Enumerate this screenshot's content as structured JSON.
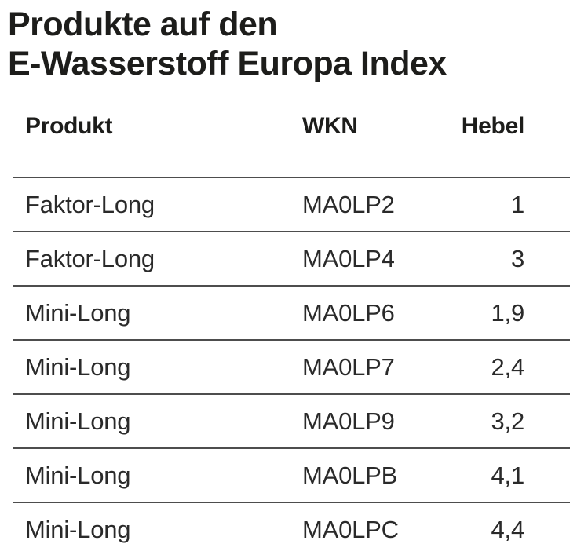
{
  "title": {
    "line1": "Produkte auf den",
    "line2": "E-Wasserstoff Europa Index"
  },
  "table": {
    "headers": {
      "produkt": "Produkt",
      "wkn": "WKN",
      "hebel": "Hebel"
    },
    "rows": [
      {
        "produkt": "Faktor-Long",
        "wkn": "MA0LP2",
        "hebel": "1"
      },
      {
        "produkt": "Faktor-Long",
        "wkn": "MA0LP4",
        "hebel": "3"
      },
      {
        "produkt": "Mini-Long",
        "wkn": "MA0LP6",
        "hebel": "1,9"
      },
      {
        "produkt": "Mini-Long",
        "wkn": "MA0LP7",
        "hebel": "2,4"
      },
      {
        "produkt": "Mini-Long",
        "wkn": "MA0LP9",
        "hebel": "3,2"
      },
      {
        "produkt": "Mini-Long",
        "wkn": "MA0LPB",
        "hebel": "4,1"
      },
      {
        "produkt": "Mini-Long",
        "wkn": "MA0LPC",
        "hebel": "4,4"
      }
    ]
  },
  "colors": {
    "text": "#1d1d1b",
    "body_text": "#2a2a2a",
    "rule": "#4d4d4d",
    "background": "#ffffff"
  }
}
